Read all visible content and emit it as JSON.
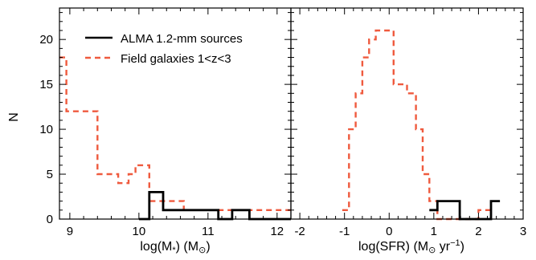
{
  "chart_data": [
    {
      "type": "histogram",
      "xlabel": "log(M",
      "xlabel_sub": "*",
      "xlabel_tail": ") (M",
      "xlabel_sun": "⊙",
      "xlabel_end": ")",
      "ylabel": "N",
      "xlim": [
        8.85,
        12.2
      ],
      "ylim": [
        0,
        23.5
      ],
      "xticks": [
        9,
        10,
        11,
        12
      ],
      "yticks": [
        0,
        5,
        10,
        15,
        20
      ],
      "legend": {
        "placement": "top-right"
      },
      "series": [
        {
          "name": "ALMA 1.2-mm sources",
          "color": "#000000",
          "style": "solid",
          "bins": [
            {
              "x0": 10.0,
              "x1": 10.15,
              "y": 0
            },
            {
              "x0": 10.15,
              "x1": 10.35,
              "y": 3
            },
            {
              "x0": 10.35,
              "x1": 11.15,
              "y": 1
            },
            {
              "x0": 11.15,
              "x1": 11.35,
              "y": 0
            },
            {
              "x0": 11.35,
              "x1": 11.6,
              "y": 1
            },
            {
              "x0": 11.6,
              "x1": 12.2,
              "y": 0
            }
          ]
        },
        {
          "name": "Field galaxies 1<z<3",
          "color": "#ef5a3e",
          "style": "dashed",
          "bins": [
            {
              "x0": 8.85,
              "x1": 8.95,
              "y": 18
            },
            {
              "x0": 8.95,
              "x1": 9.4,
              "y": 12
            },
            {
              "x0": 9.4,
              "x1": 9.7,
              "y": 5
            },
            {
              "x0": 9.7,
              "x1": 9.85,
              "y": 4
            },
            {
              "x0": 9.85,
              "x1": 9.95,
              "y": 5
            },
            {
              "x0": 9.95,
              "x1": 10.15,
              "y": 6
            },
            {
              "x0": 10.15,
              "x1": 10.65,
              "y": 2
            },
            {
              "x0": 10.65,
              "x1": 11.15,
              "y": 1
            },
            {
              "x0": 11.15,
              "x1": 12.2,
              "y": 1
            }
          ]
        }
      ]
    },
    {
      "type": "histogram",
      "xlabel": "log(SFR) (M",
      "xlabel_sun": "⊙",
      "xlabel_tail": " yr",
      "xlabel_sup": "−1",
      "xlabel_end": ")",
      "xlim": [
        -2.2,
        3.0
      ],
      "ylim": [
        0,
        23.5
      ],
      "xticks": [
        -2,
        -1,
        0,
        1,
        2,
        3
      ],
      "xtick_labels": [
        "-2",
        "-1",
        "0",
        "1",
        "2",
        "3"
      ],
      "series": [
        {
          "name": "ALMA 1.2-mm sources",
          "color": "#000000",
          "style": "solid",
          "bins": [
            {
              "x0": 0.9,
              "x1": 1.08,
              "y": 1
            },
            {
              "x0": 1.08,
              "x1": 1.58,
              "y": 2
            },
            {
              "x0": 1.58,
              "x1": 2.28,
              "y": 0
            },
            {
              "x0": 2.28,
              "x1": 2.48,
              "y": 2
            }
          ]
        },
        {
          "name": "Field galaxies 1<z<3",
          "color": "#ef5a3e",
          "style": "dashed",
          "bins": [
            {
              "x0": -1.05,
              "x1": -0.9,
              "y": 1
            },
            {
              "x0": -0.9,
              "x1": -0.75,
              "y": 10
            },
            {
              "x0": -0.75,
              "x1": -0.6,
              "y": 14
            },
            {
              "x0": -0.6,
              "x1": -0.45,
              "y": 18
            },
            {
              "x0": -0.45,
              "x1": -0.3,
              "y": 20
            },
            {
              "x0": -0.3,
              "x1": 0.1,
              "y": 21
            },
            {
              "x0": 0.1,
              "x1": 0.4,
              "y": 15
            },
            {
              "x0": 0.4,
              "x1": 0.6,
              "y": 14
            },
            {
              "x0": 0.6,
              "x1": 0.75,
              "y": 10
            },
            {
              "x0": 0.75,
              "x1": 0.9,
              "y": 5
            },
            {
              "x0": 0.9,
              "x1": 1.08,
              "y": 2
            },
            {
              "x0": 1.08,
              "x1": 2.0,
              "y": 0
            },
            {
              "x0": 2.0,
              "x1": 2.3,
              "y": 1
            }
          ]
        }
      ]
    }
  ]
}
